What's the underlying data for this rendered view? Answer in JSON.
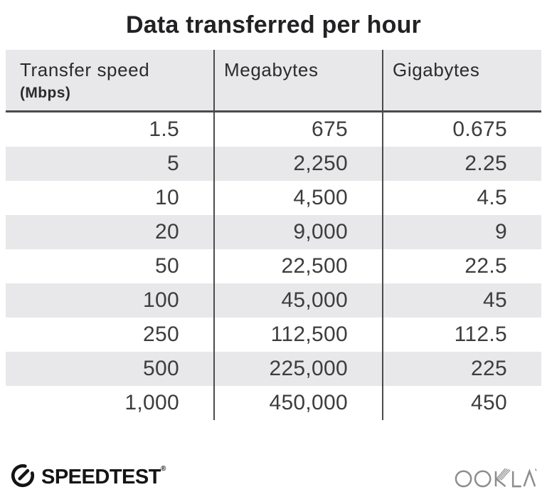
{
  "title": "Data transferred per hour",
  "table": {
    "columns": [
      {
        "label": "Transfer speed",
        "sublabel": "(Mbps)"
      },
      {
        "label": "Megabytes",
        "sublabel": ""
      },
      {
        "label": "Gigabytes",
        "sublabel": ""
      }
    ],
    "rows": [
      [
        "1.5",
        "675",
        "0.675"
      ],
      [
        "5",
        "2,250",
        "2.25"
      ],
      [
        "10",
        "4,500",
        "4.5"
      ],
      [
        "20",
        "9,000",
        "9"
      ],
      [
        "50",
        "22,500",
        "22.5"
      ],
      [
        "100",
        "45,000",
        "45"
      ],
      [
        "250",
        "112,500",
        "112.5"
      ],
      [
        "500",
        "225,000",
        "225"
      ],
      [
        "1,000",
        "450,000",
        "450"
      ]
    ]
  },
  "footer": {
    "brand": "SPEEDTEST",
    "brand_mark": "®",
    "company": "OOKLA",
    "icons": [
      "speedtest-gauge-icon",
      "ookla-wordmark"
    ]
  },
  "colors": {
    "bg": "#ffffff",
    "title-text": "#222224",
    "header-bg": "#e8e8eb",
    "header-text": "#2b2b2d",
    "stripe": "#e8e8eb",
    "divider": "#4b4b4b",
    "body-text": "#3d3d3f",
    "logo-black": "#141414",
    "ookla-gray": "#8d8d8d"
  },
  "chart_data": {
    "type": "table",
    "title": "Data transferred per hour",
    "columns": [
      "Transfer speed (Mbps)",
      "Megabytes",
      "Gigabytes"
    ],
    "rows": [
      [
        1.5,
        675,
        0.675
      ],
      [
        5,
        2250,
        2.25
      ],
      [
        10,
        4500,
        4.5
      ],
      [
        20,
        9000,
        9
      ],
      [
        50,
        22500,
        22.5
      ],
      [
        100,
        45000,
        45
      ],
      [
        250,
        112500,
        112.5
      ],
      [
        500,
        225000,
        225
      ],
      [
        1000,
        450000,
        450
      ]
    ],
    "layout": {
      "zebra_striping": true,
      "header_background": "#e8e8eb",
      "column_alignment": [
        "right",
        "right",
        "right"
      ]
    }
  }
}
